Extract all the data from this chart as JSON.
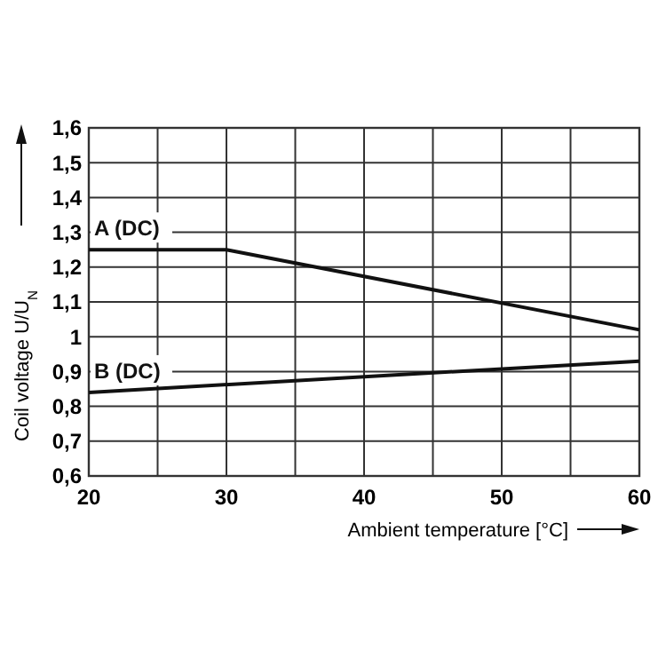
{
  "chart_data": {
    "type": "line",
    "xlabel": "Ambient temperature [°C]",
    "ylabel": "Coil voltage U/U$_{N}$",
    "series": [
      {
        "name": "A (DC)",
        "color": "#111111",
        "x": [
          20,
          30,
          60
        ],
        "values": [
          1.25,
          1.25,
          1.02
        ]
      },
      {
        "name": "B (DC)",
        "color": "#111111",
        "x": [
          20,
          60
        ],
        "values": [
          0.84,
          0.93
        ]
      }
    ],
    "xlim": [
      20,
      60
    ],
    "xticks": [
      20,
      {
        "value": 25,
        "label": null
      },
      30,
      {
        "value": 35,
        "label": null
      },
      40,
      {
        "value": 45,
        "label": null
      },
      50,
      {
        "value": 55,
        "label": null
      },
      60
    ],
    "ylim": [
      0.6,
      1.6
    ],
    "yticks": [
      {
        "value": 0.6,
        "label": "0,6"
      },
      {
        "value": 0.7,
        "label": "0,7"
      },
      {
        "value": 0.8,
        "label": "0,8"
      },
      {
        "value": 0.9,
        "label": "0,9"
      },
      {
        "value": 1,
        "label": "1"
      },
      {
        "value": 1.1,
        "label": "1,1"
      },
      {
        "value": 1.2,
        "label": "1,2"
      },
      {
        "value": 1.3,
        "label": "1,3"
      },
      {
        "value": 1.4,
        "label": "1,4"
      },
      {
        "value": 1.5,
        "label": "1,5"
      },
      {
        "value": 1.6,
        "label": "1,6"
      }
    ],
    "grid": true,
    "legend": false,
    "marker": "none",
    "line_style": "solid"
  }
}
